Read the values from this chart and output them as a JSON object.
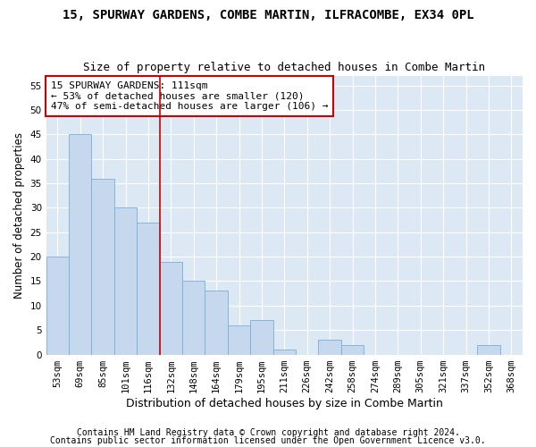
{
  "title": "15, SPURWAY GARDENS, COMBE MARTIN, ILFRACOMBE, EX34 0PL",
  "subtitle": "Size of property relative to detached houses in Combe Martin",
  "xlabel": "Distribution of detached houses by size in Combe Martin",
  "ylabel": "Number of detached properties",
  "categories": [
    "53sqm",
    "69sqm",
    "85sqm",
    "101sqm",
    "116sqm",
    "132sqm",
    "148sqm",
    "164sqm",
    "179sqm",
    "195sqm",
    "211sqm",
    "226sqm",
    "242sqm",
    "258sqm",
    "274sqm",
    "289sqm",
    "305sqm",
    "321sqm",
    "337sqm",
    "352sqm",
    "368sqm"
  ],
  "values": [
    20,
    45,
    36,
    30,
    27,
    19,
    15,
    13,
    6,
    7,
    1,
    0,
    3,
    2,
    0,
    0,
    0,
    0,
    0,
    2,
    0
  ],
  "bar_color": "#c5d8ed",
  "bar_edge_color": "#7aaed6",
  "vline_index": 4,
  "vline_color": "#cc0000",
  "ylim": [
    0,
    57
  ],
  "yticks": [
    0,
    5,
    10,
    15,
    20,
    25,
    30,
    35,
    40,
    45,
    50,
    55
  ],
  "annotation_line1": "15 SPURWAY GARDENS: 111sqm",
  "annotation_line2": "← 53% of detached houses are smaller (120)",
  "annotation_line3": "47% of semi-detached houses are larger (106) →",
  "annotation_box_color": "#ffffff",
  "annotation_box_edge": "#cc0000",
  "footer1": "Contains HM Land Registry data © Crown copyright and database right 2024.",
  "footer2": "Contains public sector information licensed under the Open Government Licence v3.0.",
  "plot_bg_color": "#dde8f5",
  "title_fontsize": 10,
  "subtitle_fontsize": 9,
  "xlabel_fontsize": 9,
  "ylabel_fontsize": 8.5,
  "tick_fontsize": 7.5,
  "annotation_fontsize": 8,
  "footer_fontsize": 7
}
